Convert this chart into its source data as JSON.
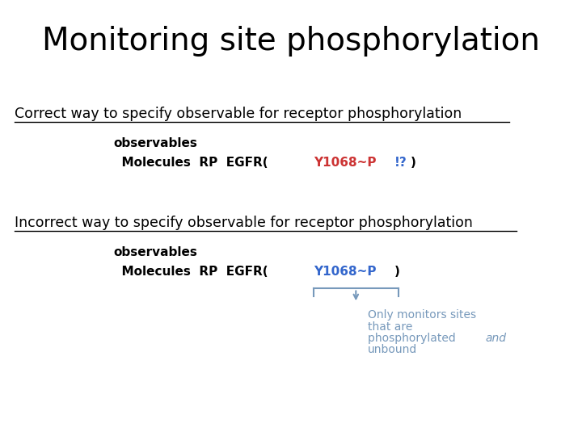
{
  "title": "Monitoring site phosphorylation",
  "title_fontsize": 28,
  "title_color": "#000000",
  "bg_color": "#ffffff",
  "correct_label": "Correct way to specify observable for receptor phosphorylation",
  "correct_label_fontsize": 12.5,
  "correct_label_color": "#000000",
  "correct_code_line1": "observables",
  "correct_code_line2_prefix": "  Molecules  RP  EGFR(",
  "correct_code_colored_part1": "Y1068~P",
  "correct_code_colored_part1_color": "#cc3333",
  "correct_code_colored_part2": "!?",
  "correct_code_colored_part2_color": "#3366cc",
  "correct_code_line2_suffix": ")",
  "code_fontsize": 11,
  "code_color": "#000000",
  "incorrect_label": "Incorrect way to specify observable for receptor phosphorylation",
  "incorrect_label_fontsize": 12.5,
  "incorrect_label_color": "#000000",
  "incorrect_code_line1": "observables",
  "incorrect_code_line2_prefix": "  Molecules  RP  EGFR(",
  "incorrect_code_line2_colored": "Y1068~P",
  "incorrect_code_line2_colored_color": "#3366cc",
  "incorrect_code_line2_suffix": ")",
  "annotation_text_line1": "Only monitors sites",
  "annotation_text_line2": "that are",
  "annotation_text_line3": "phosphorylated ",
  "annotation_text_line3_italic": "and",
  "annotation_text_line4": "unbound",
  "annotation_color": "#7799bb",
  "annotation_fontsize": 10,
  "bracket_color": "#7799bb"
}
